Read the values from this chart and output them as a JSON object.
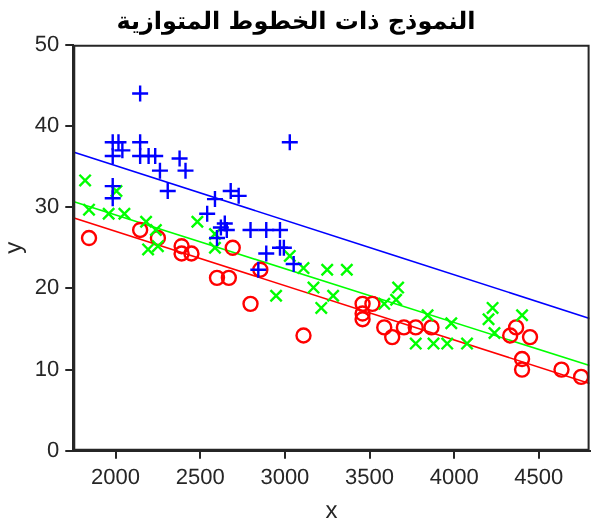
{
  "chart_data": {
    "type": "scatter",
    "title": "النموذج ذات الخطوط المتوازية",
    "xlabel": "x",
    "ylabel": "y",
    "xlim": [
      1750,
      4800
    ],
    "xticks": [
      2000,
      2500,
      3000,
      3500,
      4000,
      4500
    ],
    "ylim": [
      0,
      50
    ],
    "yticks": [
      0,
      10,
      20,
      30,
      40,
      50
    ],
    "grid": false,
    "legend": false,
    "series": [
      {
        "type": "scatter",
        "marker": "cross",
        "color": "#0000ff",
        "x": [
          2145,
          1983,
          2017,
          2145,
          3029,
          2040,
          1983,
          2145,
          2195,
          2234,
          2378,
          2262,
          2413,
          1983,
          1983,
          2308,
          2587,
          2680,
          2727,
          2541,
          2645,
          2622,
          2599,
          2657,
          2797,
          2890,
          2971,
          2890,
          2971,
          3052,
          2843,
          2994
        ],
        "values": [
          44,
          38,
          38,
          38,
          38,
          37,
          36.3,
          36.3,
          36.3,
          36.3,
          36,
          34.5,
          34.5,
          32.6,
          31.1,
          32,
          31,
          32,
          31.4,
          29.2,
          28,
          27.5,
          26.2,
          27.2,
          27.2,
          27.2,
          27.2,
          24.3,
          25,
          23,
          22.3,
          25
        ]
      },
      {
        "type": "scatter",
        "marker": "x",
        "color": "#00ff00",
        "x": [
          1820,
          1843,
          1959,
          2052,
          2005,
          2180,
          2238,
          2192,
          2250,
          2483,
          2587,
          2587,
          2948,
          3029,
          3110,
          3169,
          3250,
          3366,
          3215,
          3285,
          3587,
          3669,
          3657,
          3843,
          3773,
          3878,
          3959,
          3983,
          4076,
          4227,
          4203,
          4238,
          4401
        ],
        "values": [
          33.3,
          29.7,
          29.2,
          29.2,
          32,
          28.2,
          27.2,
          24.8,
          25.2,
          28.2,
          26.7,
          25,
          19.1,
          24,
          22.5,
          20.1,
          22.3,
          22.3,
          17.6,
          19.1,
          18.1,
          20.1,
          18.6,
          16.7,
          13.2,
          13.2,
          13.2,
          15.7,
          13.2,
          17.6,
          16.2,
          14.5,
          16.7
        ]
      },
      {
        "type": "scatter",
        "marker": "circle",
        "color": "#ff0000",
        "x": [
          1843,
          2145,
          2250,
          2390,
          2390,
          2448,
          2599,
          2669,
          2692,
          2797,
          2855,
          3110,
          3459,
          3517,
          3459,
          3459,
          3587,
          3634,
          3703,
          3773,
          3866,
          4331,
          4366,
          4448,
          4401,
          4401,
          4634,
          4750
        ],
        "values": [
          26.2,
          27.2,
          26.2,
          25.2,
          24.3,
          24.3,
          21.3,
          21.3,
          25,
          18.1,
          22.3,
          14.2,
          18.1,
          18.1,
          16.9,
          16.2,
          15.2,
          14,
          15.2,
          15.2,
          15.2,
          14.2,
          15.2,
          14,
          11.3,
          10,
          10,
          9.1
        ]
      },
      {
        "type": "line",
        "color": "#0000ff",
        "x": [
          1750,
          4800
        ],
        "values": [
          36.8,
          16.3
        ]
      },
      {
        "type": "line",
        "color": "#00ff00",
        "x": [
          1750,
          4800
        ],
        "values": [
          30.7,
          10.5
        ]
      },
      {
        "type": "line",
        "color": "#ff0000",
        "x": [
          1750,
          4800
        ],
        "values": [
          28.7,
          8.3
        ]
      }
    ]
  }
}
